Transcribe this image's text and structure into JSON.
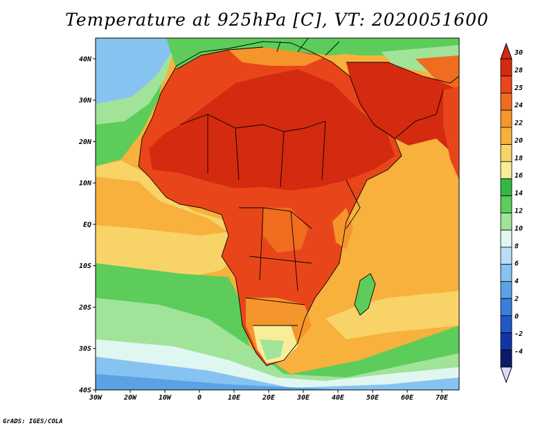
{
  "title": "Temperature at 925hPa [C], VT: 2020051600",
  "credit": "GrADS: IGES/COLA",
  "map": {
    "lat_labels": [
      "40N",
      "30N",
      "20N",
      "10N",
      "EQ",
      "10S",
      "20S",
      "30S",
      "40S"
    ],
    "lat_values": [
      40,
      30,
      20,
      10,
      0,
      -10,
      -20,
      -30,
      -40
    ],
    "lon_labels": [
      "30W",
      "20W",
      "10W",
      "0",
      "10E",
      "20E",
      "30E",
      "40E",
      "50E",
      "60E",
      "70E"
    ],
    "lon_values": [
      -30,
      -20,
      -10,
      0,
      10,
      20,
      30,
      40,
      50,
      60,
      70
    ],
    "lat_range": [
      -40,
      45
    ],
    "lon_range": [
      -30,
      75
    ]
  },
  "colorbar": {
    "labels": [
      "30",
      "28",
      "25",
      "24",
      "22",
      "20",
      "18",
      "16",
      "14",
      "12",
      "10",
      "8",
      "6",
      "4",
      "2",
      "0",
      "-2",
      "-4"
    ],
    "colors": [
      "#d42a10",
      "#e8461a",
      "#f06c1e",
      "#f5952c",
      "#f7b13c",
      "#f8d468",
      "#f8ed98",
      "#33b845",
      "#5dcc5a",
      "#a2e39a",
      "#dff7f0",
      "#b9dff8",
      "#86c3f0",
      "#5aa2e4",
      "#3a7fd8",
      "#2158c8",
      "#1235a6",
      "#0b1a6a"
    ],
    "top_color": "#d42a10",
    "bottom_color": "#dcdcf8"
  },
  "palette": {
    "ocean_cold": "#86c3f0",
    "ocean_cool": "#b9dff8",
    "ocean_green": "#5dcc5a",
    "ocean_warm": "#f7b13c",
    "land_hot": "#d42a10",
    "land_warm": "#e8461a"
  }
}
